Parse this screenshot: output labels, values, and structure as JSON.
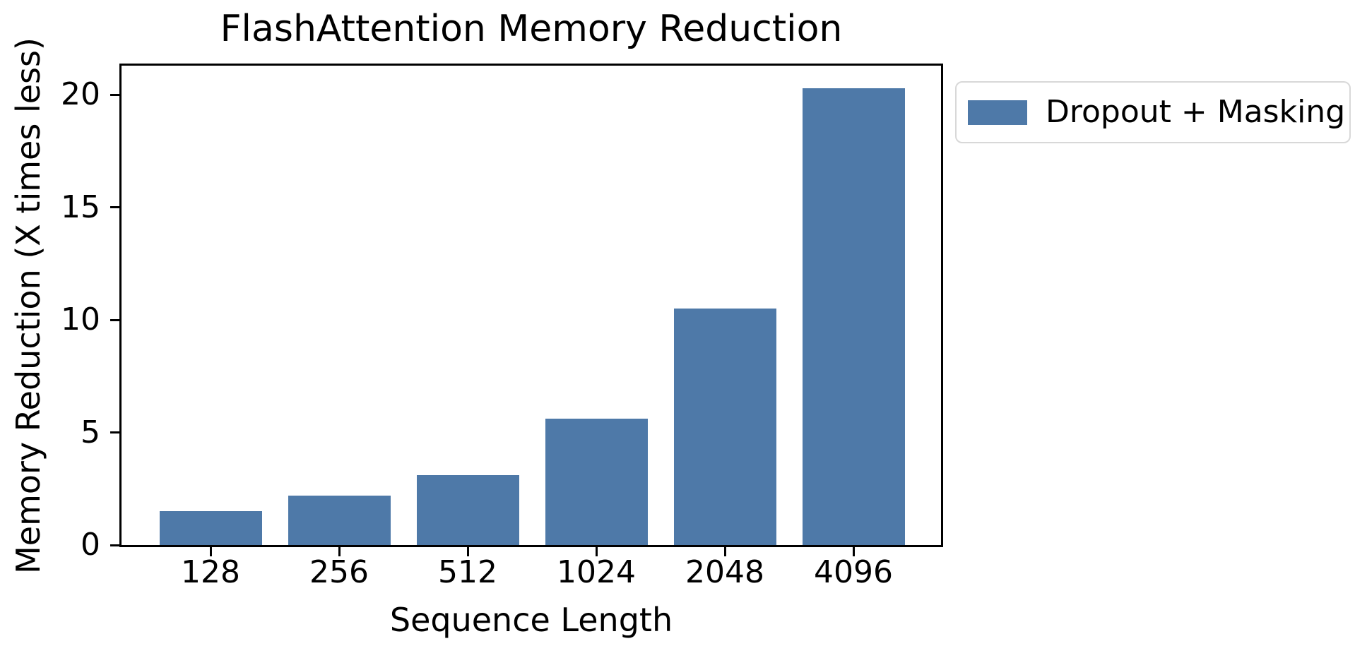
{
  "figure": {
    "title": "FlashAttention Memory Reduction"
  },
  "chart_data": {
    "type": "bar",
    "title": "FlashAttention Memory Reduction",
    "xlabel": "Sequence Length",
    "ylabel": "Memory Reduction (X times less)",
    "categories": [
      "128",
      "256",
      "512",
      "1024",
      "2048",
      "4096"
    ],
    "series": [
      {
        "name": "Dropout + Masking",
        "values": [
          1.5,
          2.2,
          3.1,
          5.6,
          10.5,
          20.3
        ]
      }
    ],
    "yticks": [
      0,
      5,
      10,
      15,
      20
    ],
    "ylim": [
      0,
      21.3
    ],
    "grid": false,
    "legend_position": "outside-upper-right",
    "bar_color": "#4e79a8"
  },
  "legend": {
    "label": "Dropout + Masking",
    "swatch_color": "#4e79a8"
  },
  "colors": {
    "bar": "#4e79a8",
    "axis": "#000000",
    "text": "#000000",
    "legend_border": "#d8d8d8",
    "background": "#ffffff"
  }
}
